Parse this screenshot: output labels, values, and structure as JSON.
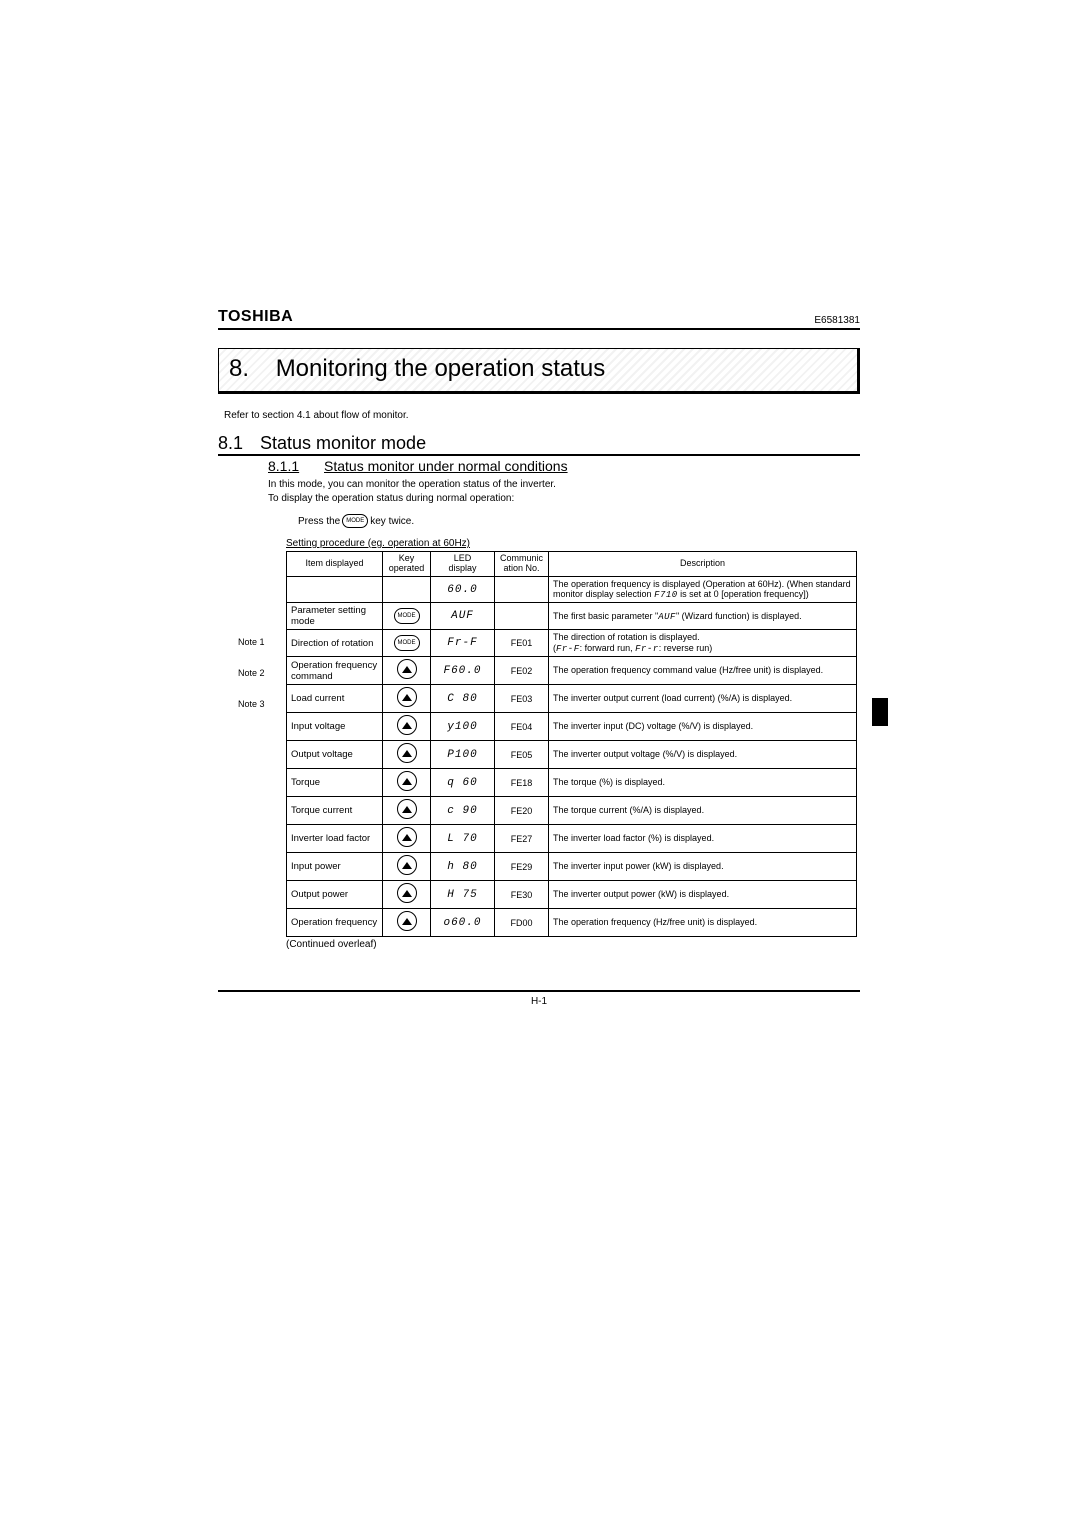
{
  "doc": {
    "brand": "TOSHIBA",
    "docnum": "E6581381",
    "page_number": "H-1"
  },
  "chapter": {
    "num": "8.",
    "title": "Monitoring the operation status",
    "ref": "Refer to section 4.1 about flow of monitor."
  },
  "s81": {
    "num": "8.1",
    "title": "Status monitor mode"
  },
  "s811": {
    "num": "8.1.1",
    "title": "Status monitor under normal conditions"
  },
  "intro": {
    "l1": "In this mode, you can monitor the operation status of the inverter.",
    "l2": "To display the operation status during normal operation:"
  },
  "press": {
    "pre": "Press the",
    "key": "MODE",
    "post": "key twice."
  },
  "table": {
    "caption": "Setting procedure (eg. operation at 60Hz)",
    "continued": "(Continued overleaf)",
    "headers": {
      "c1": "Item displayed",
      "c2a": "Key",
      "c2b": "operated",
      "c3a": "LED",
      "c3b": "display",
      "c4a": "Communic",
      "c4b": "ation No.",
      "c5": "Description"
    },
    "notes": {
      "n1": "Note 1",
      "n2": "Note 2",
      "n3": "Note 3"
    },
    "rows": [
      {
        "item": "",
        "key": "",
        "led": "60.0",
        "comm": "",
        "desc": "The operation frequency is displayed (Operation at 60Hz). (When standard monitor display selection ",
        "desc_led": "F710",
        "desc2": " is set at 0 [operation frequency])"
      },
      {
        "item": "Parameter setting mode",
        "key": "MODE",
        "led": "AUF",
        "comm": "",
        "desc": "The first basic parameter \"",
        "desc_led": "AUF",
        "desc2": "\" (Wizard function) is displayed."
      },
      {
        "item": "Direction of rotation",
        "key": "MODE",
        "led": "Fr-F",
        "comm": "FE01",
        "desc": "The direction of rotation is displayed.\n(",
        "desc_led": "Fr-F",
        "desc2": ": forward run, ",
        "desc_led2": "Fr-r",
        "desc3": ": reverse run)"
      },
      {
        "item": "Operation frequency command",
        "key": "UP",
        "led": "F60.0",
        "comm": "FE02",
        "desc": "The operation frequency command value (Hz/free unit) is displayed."
      },
      {
        "item": "Load current",
        "key": "UP",
        "led": "C  80",
        "comm": "FE03",
        "desc": "The inverter output current (load current) (%/A) is displayed."
      },
      {
        "item": "Input voltage",
        "key": "UP",
        "led": "y100",
        "comm": "FE04",
        "desc": "The inverter input (DC) voltage (%/V) is displayed."
      },
      {
        "item": "Output voltage",
        "key": "UP",
        "led": "P100",
        "comm": "FE05",
        "desc": "The inverter output voltage (%/V) is displayed."
      },
      {
        "item": "Torque",
        "key": "UP",
        "led": "q  60",
        "comm": "FE18",
        "desc": "The torque (%) is displayed."
      },
      {
        "item": "Torque current",
        "key": "UP",
        "led": "c  90",
        "comm": "FE20",
        "desc": "The torque current (%/A) is displayed."
      },
      {
        "item": "Inverter load factor",
        "key": "UP",
        "led": "L  70",
        "comm": "FE27",
        "desc": "The inverter load factor (%) is displayed."
      },
      {
        "item": "Input power",
        "key": "UP",
        "led": "h  80",
        "comm": "FE29",
        "desc": "The inverter input power (kW) is displayed."
      },
      {
        "item": "Output power",
        "key": "UP",
        "led": "H  75",
        "comm": "FE30",
        "desc": "The inverter output power (kW) is displayed."
      },
      {
        "item": "Operation frequency",
        "key": "UP",
        "led": "o60.0",
        "comm": "FD00",
        "desc": "The operation frequency (Hz/free unit) is displayed."
      }
    ]
  }
}
